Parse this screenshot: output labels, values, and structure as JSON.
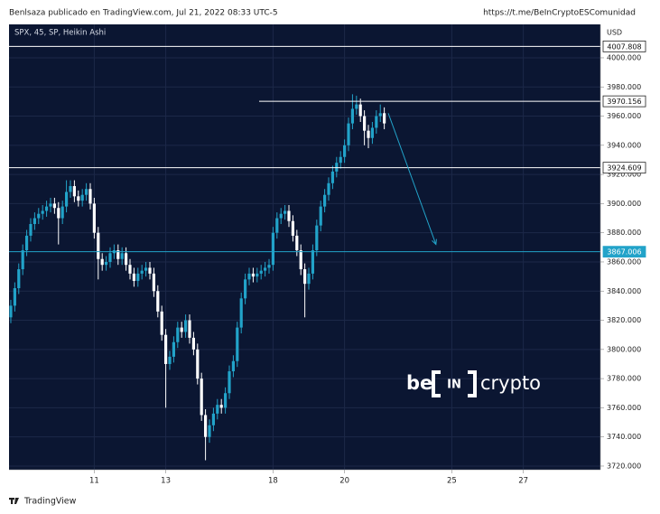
{
  "header": {
    "author": "Benlsaza publicado en TradingView.com, Jul 21, 2022 08:33 UTC-5",
    "url": "https://t.me/BeInCryptoESComunidad"
  },
  "footer": "TradingView",
  "chart_data": {
    "type": "candlestick",
    "title": "SPX, 45, SP, Heikin Ashi",
    "ylabel": "USD",
    "up_color": "#22a3c9",
    "down_color": "#ffffff",
    "grid": true,
    "xlim": [
      -0.45,
      148.4
    ],
    "xticks": [
      {
        "value": 21,
        "label": "11"
      },
      {
        "value": 39,
        "label": "13"
      },
      {
        "value": 66,
        "label": "18"
      },
      {
        "value": 84,
        "label": "20"
      },
      {
        "value": 111,
        "label": "25"
      },
      {
        "value": 129,
        "label": "27"
      }
    ],
    "ylim": [
      3717.5,
      4022.9
    ],
    "yticks": [
      {
        "value": 3720,
        "label": "3720.000"
      },
      {
        "value": 3740,
        "label": "3740.000"
      },
      {
        "value": 3760,
        "label": "3760.000"
      },
      {
        "value": 3780,
        "label": "3780.000"
      },
      {
        "value": 3800,
        "label": "3800.000"
      },
      {
        "value": 3820,
        "label": "3820.000"
      },
      {
        "value": 3840,
        "label": "3840.000"
      },
      {
        "value": 3860,
        "label": "3860.000"
      },
      {
        "value": 3880,
        "label": "3880.000"
      },
      {
        "value": 3900,
        "label": "3900.000"
      },
      {
        "value": 3920,
        "label": "3920.000"
      },
      {
        "value": 3940,
        "label": "3940.000"
      },
      {
        "value": 3960,
        "label": "3960.000"
      },
      {
        "value": 3980,
        "label": "3980.000"
      },
      {
        "value": 4000,
        "label": "4000.000"
      }
    ],
    "open": [
      3822,
      3830,
      3842,
      3855,
      3868,
      3878,
      3886,
      3890,
      3893,
      3895,
      3898,
      3900,
      3897,
      3890,
      3898,
      3908,
      3912,
      3905,
      3902,
      3906,
      3910,
      3900,
      3880,
      3862,
      3858,
      3860,
      3866,
      3868,
      3862,
      3866,
      3858,
      3852,
      3847,
      3852,
      3854,
      3856,
      3852,
      3840,
      3826,
      3810,
      3790,
      3795,
      3805,
      3815,
      3812,
      3820,
      3808,
      3800,
      3780,
      3755,
      3740,
      3748,
      3756,
      3762,
      3760,
      3770,
      3785,
      3792,
      3815,
      3835,
      3848,
      3852,
      3850,
      3852,
      3854,
      3856,
      3858,
      3880,
      3890,
      3893,
      3895,
      3888,
      3878,
      3868,
      3855,
      3845,
      3852,
      3868,
      3885,
      3898,
      3906,
      3914,
      3922,
      3928,
      3932,
      3940,
      3955,
      3965,
      3968,
      3960,
      3950,
      3945,
      3952,
      3960,
      3962
    ],
    "high": [
      3834,
      3846,
      3859,
      3872,
      3882,
      3890,
      3894,
      3897,
      3899,
      3902,
      3904,
      3904,
      3901,
      3902,
      3916,
      3916,
      3916,
      3909,
      3910,
      3914,
      3914,
      3904,
      3884,
      3866,
      3864,
      3870,
      3872,
      3872,
      3870,
      3870,
      3862,
      3856,
      3856,
      3858,
      3860,
      3860,
      3856,
      3844,
      3830,
      3814,
      3799,
      3809,
      3819,
      3819,
      3824,
      3824,
      3812,
      3804,
      3784,
      3759,
      3752,
      3760,
      3766,
      3766,
      3774,
      3789,
      3796,
      3819,
      3839,
      3852,
      3856,
      3856,
      3856,
      3858,
      3860,
      3862,
      3884,
      3894,
      3897,
      3899,
      3899,
      3892,
      3882,
      3872,
      3859,
      3856,
      3872,
      3889,
      3902,
      3910,
      3918,
      3926,
      3932,
      3936,
      3944,
      3959,
      3975,
      3974,
      3972,
      3964,
      3954,
      3956,
      3964,
      3968,
      3966
    ],
    "low": [
      3818,
      3826,
      3838,
      3851,
      3864,
      3874,
      3882,
      3886,
      3889,
      3891,
      3894,
      3893,
      3872,
      3886,
      3894,
      3904,
      3901,
      3898,
      3898,
      3902,
      3896,
      3876,
      3848,
      3854,
      3854,
      3856,
      3862,
      3858,
      3858,
      3854,
      3848,
      3843,
      3843,
      3848,
      3850,
      3848,
      3836,
      3822,
      3806,
      3760,
      3786,
      3791,
      3801,
      3808,
      3808,
      3804,
      3796,
      3776,
      3751,
      3724,
      3736,
      3744,
      3752,
      3756,
      3756,
      3766,
      3781,
      3788,
      3811,
      3831,
      3844,
      3846,
      3846,
      3848,
      3850,
      3852,
      3854,
      3876,
      3886,
      3889,
      3884,
      3874,
      3864,
      3851,
      3822,
      3841,
      3848,
      3864,
      3881,
      3894,
      3902,
      3910,
      3918,
      3924,
      3928,
      3936,
      3951,
      3961,
      3956,
      3940,
      3938,
      3941,
      3948,
      3956,
      3951
    ],
    "close": [
      3830,
      3842,
      3855,
      3868,
      3878,
      3886,
      3890,
      3893,
      3895,
      3898,
      3900,
      3897,
      3890,
      3898,
      3908,
      3912,
      3905,
      3902,
      3906,
      3910,
      3900,
      3880,
      3862,
      3858,
      3860,
      3866,
      3868,
      3862,
      3866,
      3858,
      3852,
      3847,
      3852,
      3854,
      3856,
      3852,
      3840,
      3826,
      3810,
      3790,
      3795,
      3805,
      3815,
      3812,
      3820,
      3808,
      3800,
      3780,
      3755,
      3740,
      3748,
      3756,
      3762,
      3760,
      3770,
      3785,
      3792,
      3815,
      3835,
      3848,
      3852,
      3850,
      3852,
      3854,
      3856,
      3858,
      3880,
      3890,
      3893,
      3895,
      3888,
      3878,
      3868,
      3855,
      3845,
      3852,
      3868,
      3885,
      3898,
      3906,
      3914,
      3922,
      3928,
      3932,
      3940,
      3955,
      3965,
      3968,
      3960,
      3950,
      3945,
      3952,
      3960,
      3962,
      3955
    ],
    "levels": [
      {
        "value": 4007.808,
        "color": "#ffffff"
      },
      {
        "value": 3970.156,
        "color": "#ffffff",
        "x_start": 62.5
      },
      {
        "value": 3924.609,
        "color": "#ffffff"
      },
      {
        "value": 3867.006,
        "color": "#22a3c9"
      }
    ],
    "arrow": {
      "x": [
        95,
        107
      ],
      "y": [
        3962,
        3872
      ],
      "color": "#22a3c9"
    },
    "watermark": [
      "be",
      "IN",
      "crypto"
    ]
  }
}
